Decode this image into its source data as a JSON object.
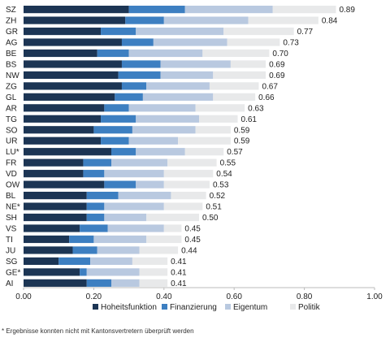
{
  "chart_data": {
    "type": "bar",
    "orientation": "horizontal",
    "stacked": true,
    "categories": [
      "SZ",
      "ZH",
      "GR",
      "AG",
      "BE",
      "BS",
      "NW",
      "ZG",
      "GL",
      "AR",
      "TG",
      "SO",
      "UR",
      "LU*",
      "FR",
      "VD",
      "OW",
      "BL",
      "NE*",
      "SH",
      "VS",
      "TI",
      "JU",
      "SG",
      "GE*",
      "AI"
    ],
    "series": [
      {
        "name": "Hoheitsfunktion",
        "color": "#1c3554",
        "values": [
          0.3,
          0.29,
          0.22,
          0.28,
          0.21,
          0.28,
          0.27,
          0.28,
          0.26,
          0.23,
          0.22,
          0.2,
          0.22,
          0.25,
          0.17,
          0.17,
          0.23,
          0.18,
          0.18,
          0.18,
          0.16,
          0.13,
          0.14,
          0.1,
          0.16,
          0.18
        ]
      },
      {
        "name": "Finanzierung",
        "color": "#3d7fc1",
        "values": [
          0.16,
          0.11,
          0.1,
          0.09,
          0.09,
          0.11,
          0.12,
          0.07,
          0.08,
          0.07,
          0.1,
          0.11,
          0.08,
          0.07,
          0.08,
          0.06,
          0.09,
          0.09,
          0.05,
          0.05,
          0.08,
          0.07,
          0.07,
          0.09,
          0.02,
          0.07
        ]
      },
      {
        "name": "Eigentum",
        "color": "#b9c9e0",
        "values": [
          0.25,
          0.24,
          0.25,
          0.21,
          0.21,
          0.2,
          0.15,
          0.18,
          0.2,
          0.19,
          0.18,
          0.18,
          0.14,
          0.14,
          0.16,
          0.17,
          0.08,
          0.15,
          0.17,
          0.12,
          0.16,
          0.15,
          0.12,
          0.12,
          0.15,
          0.08
        ]
      },
      {
        "name": "Politik",
        "color": "#e8e9ea",
        "values": [
          0.18,
          0.2,
          0.2,
          0.15,
          0.19,
          0.1,
          0.15,
          0.14,
          0.12,
          0.14,
          0.11,
          0.1,
          0.15,
          0.11,
          0.14,
          0.14,
          0.13,
          0.1,
          0.11,
          0.15,
          0.05,
          0.1,
          0.11,
          0.1,
          0.08,
          0.08
        ]
      }
    ],
    "totals": [
      "0.89",
      "0.84",
      "0.77",
      "0.73",
      "0.70",
      "0.69",
      "0.69",
      "0.67",
      "0.66",
      "0.63",
      "0.61",
      "0.59",
      "0.59",
      "0.57",
      "0.55",
      "0.54",
      "0.53",
      "0.52",
      "0.51",
      "0.50",
      "0.45",
      "0.45",
      "0.44",
      "0.41",
      "0.41",
      "0.41"
    ],
    "xlim": [
      0,
      1
    ],
    "xticks": [
      "0.00",
      "0.20",
      "0.40",
      "0.60",
      "0.80",
      "1.00"
    ],
    "grid": false,
    "legend_position": "bottom"
  },
  "footnote": "* Ergebnisse konnten nicht mit Kantonsvertretern überprüft werden"
}
